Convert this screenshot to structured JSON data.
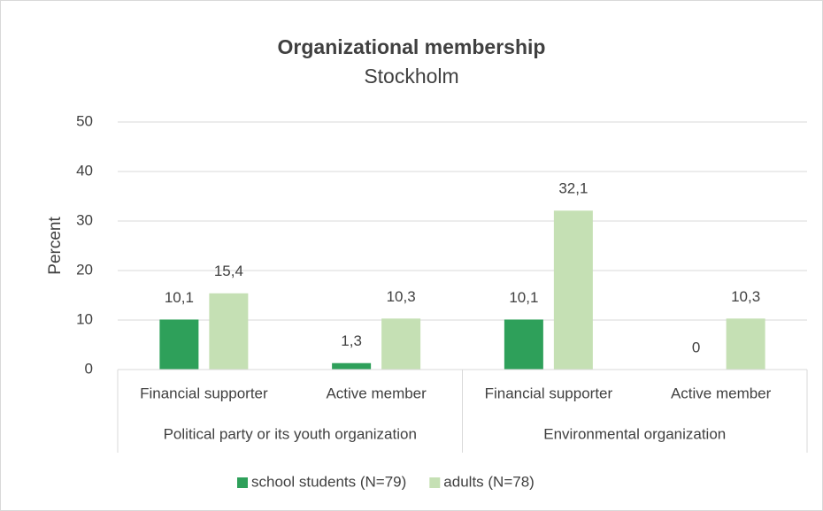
{
  "chart_data": {
    "type": "bar",
    "title": "Organizational membership",
    "subtitle": "Stockholm",
    "y_label": "Percent",
    "categories": [
      "Financial supporter",
      "Active member",
      "Financial supporter",
      "Active member"
    ],
    "groups": [
      "Political party or its youth organization",
      "Environmental organization"
    ],
    "series": [
      {
        "name": "school students (N=79)",
        "color": "#2ea05a",
        "values": [
          10.1,
          1.3,
          10.1,
          0
        ],
        "value_labels": [
          "10,1",
          "1,3",
          "10,1",
          "0"
        ]
      },
      {
        "name": "adults (N=78)",
        "color": "#c5e0b4",
        "values": [
          15.4,
          10.3,
          32.1,
          10.3
        ],
        "value_labels": [
          "15,4",
          "10,3",
          "32,1",
          "10,3"
        ]
      }
    ],
    "ylim": [
      0,
      50
    ],
    "yticks": [
      0,
      10,
      20,
      30,
      40,
      50
    ],
    "grid": true,
    "legend": "bottom"
  }
}
